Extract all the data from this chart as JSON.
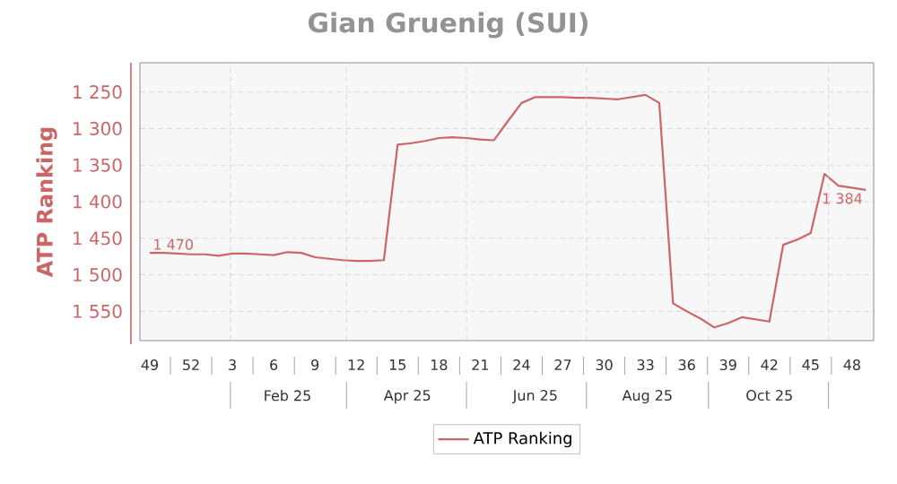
{
  "chart_data": {
    "type": "line",
    "title": "Gian Gruenig (SUI)",
    "ylabel": "ATP Ranking",
    "x": [
      "2024-12-02",
      "2024-12-09",
      "2024-12-16",
      "2024-12-23",
      "2024-12-30",
      "2025-01-06",
      "2025-01-13",
      "2025-01-20",
      "2025-01-27",
      "2025-02-03",
      "2025-02-10",
      "2025-02-17",
      "2025-02-24",
      "2025-03-03",
      "2025-03-10",
      "2025-03-17",
      "2025-03-24",
      "2025-03-31",
      "2025-04-07",
      "2025-04-14",
      "2025-04-21",
      "2025-04-28",
      "2025-05-05",
      "2025-05-12",
      "2025-05-19",
      "2025-05-26",
      "2025-06-02",
      "2025-06-09",
      "2025-06-16",
      "2025-06-23",
      "2025-06-30",
      "2025-07-07",
      "2025-07-14",
      "2025-07-21",
      "2025-07-28",
      "2025-08-04",
      "2025-08-11",
      "2025-08-18",
      "2025-08-25",
      "2025-09-01",
      "2025-09-08",
      "2025-09-15",
      "2025-09-22",
      "2025-09-29",
      "2025-10-06",
      "2025-10-13",
      "2025-10-20",
      "2025-10-27",
      "2025-11-03",
      "2025-11-10",
      "2025-11-17",
      "2025-11-24",
      "2025-12-01"
    ],
    "xlim": [
      "2024-11-27",
      "2025-12-05"
    ],
    "xticks": [
      {
        "value": "2024-12-02",
        "label": "49"
      },
      {
        "value": "2024-12-23",
        "label": "52"
      },
      {
        "value": "2025-01-13",
        "label": "3"
      },
      {
        "value": "2025-02-03",
        "label": "6"
      },
      {
        "value": "2025-02-24",
        "label": "9"
      },
      {
        "value": "2025-03-17",
        "label": "12"
      },
      {
        "value": "2025-04-07",
        "label": "15"
      },
      {
        "value": "2025-04-28",
        "label": "18"
      },
      {
        "value": "2025-05-19",
        "label": "21"
      },
      {
        "value": "2025-06-09",
        "label": "24"
      },
      {
        "value": "2025-06-30",
        "label": "27"
      },
      {
        "value": "2025-07-21",
        "label": "30"
      },
      {
        "value": "2025-08-11",
        "label": "33"
      },
      {
        "value": "2025-09-01",
        "label": "36"
      },
      {
        "value": "2025-09-22",
        "label": "39"
      },
      {
        "value": "2025-10-13",
        "label": "42"
      },
      {
        "value": "2025-11-03",
        "label": "45"
      },
      {
        "value": "2025-11-24",
        "label": "48"
      }
    ],
    "x2lim": [
      "2024-11-27",
      "2025-12-05"
    ],
    "x2ticks": [
      {
        "value": "2025-01-12",
        "label": null
      },
      {
        "value": "2025-02-10",
        "label": "Feb 25"
      },
      {
        "value": "2025-03-12",
        "label": null
      },
      {
        "value": "2025-04-12",
        "label": "Apr 25"
      },
      {
        "value": "2025-05-12",
        "label": null
      },
      {
        "value": "2025-06-16",
        "label": "Jun 25"
      },
      {
        "value": "2025-07-12",
        "label": null
      },
      {
        "value": "2025-08-12",
        "label": "Aug 25"
      },
      {
        "value": "2025-09-12",
        "label": null
      },
      {
        "value": "2025-10-13",
        "label": "Oct 25"
      },
      {
        "value": "2025-11-12",
        "label": null
      }
    ],
    "ylim": [
      1590,
      1210
    ],
    "yticks": [
      {
        "value": 1250,
        "label": "1 250"
      },
      {
        "value": 1300,
        "label": "1 300"
      },
      {
        "value": 1350,
        "label": "1 350"
      },
      {
        "value": 1400,
        "label": "1 400"
      },
      {
        "value": 1450,
        "label": "1 450"
      },
      {
        "value": 1500,
        "label": "1 500"
      },
      {
        "value": 1550,
        "label": "1 550"
      }
    ],
    "series": [
      {
        "name": "ATP Ranking",
        "color": "#cc6666",
        "values": [
          1470,
          1470,
          1471,
          1472,
          1472,
          1474,
          1471,
          1471,
          1472,
          1473,
          1469,
          1470,
          1476,
          1478,
          1480,
          1481,
          1481,
          1480,
          1322,
          1320,
          1317,
          1313,
          1312,
          1313,
          1315,
          1316,
          1290,
          1265,
          1257,
          1257,
          1257,
          1258,
          1258,
          1259,
          1260,
          1257,
          1254,
          1265,
          1539,
          1550,
          1560,
          1572,
          1566,
          1558,
          1561,
          1564,
          1459,
          1452,
          1443,
          1362,
          1378,
          1381,
          1384
        ],
        "value_labels": [
          "1 470",
          null,
          null,
          null,
          null,
          null,
          null,
          null,
          null,
          null,
          null,
          null,
          null,
          null,
          null,
          null,
          null,
          null,
          null,
          null,
          null,
          null,
          null,
          null,
          null,
          null,
          null,
          null,
          null,
          null,
          null,
          null,
          null,
          null,
          null,
          null,
          null,
          null,
          null,
          null,
          null,
          null,
          null,
          null,
          null,
          null,
          null,
          null,
          null,
          null,
          null,
          null,
          "1 384"
        ]
      }
    ],
    "grid": true,
    "legend": "bottom",
    "marker": "none",
    "line_style": "solid"
  }
}
